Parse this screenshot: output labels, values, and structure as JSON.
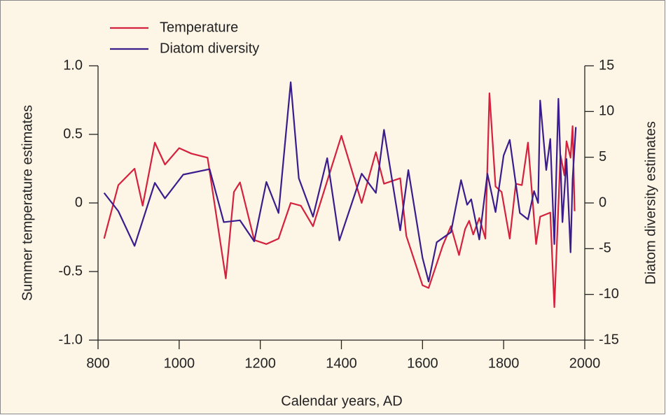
{
  "chart_data": {
    "type": "line",
    "xlabel": "Calendar years, AD",
    "ylabel": "Summer temperature estimates",
    "y2label": "Diatom diversity estimates",
    "xlim": [
      800,
      2000
    ],
    "xticks": [
      800,
      1000,
      1200,
      1400,
      1600,
      1800,
      2000
    ],
    "ylim": [
      -1,
      1
    ],
    "yticks": [
      {
        "value": -1,
        "label": "-1.0"
      },
      -0.5,
      0,
      0.5,
      {
        "value": 1,
        "label": "1.0"
      }
    ],
    "y2lim": [
      -15,
      15
    ],
    "y2ticks": [
      -15,
      -10,
      -5,
      0,
      5,
      10,
      15
    ],
    "legend": "top-left",
    "series": [
      {
        "name": "Temperature",
        "color": "#d4213d",
        "x": [
          815,
          850,
          890,
          910,
          940,
          965,
          1000,
          1030,
          1070,
          1115,
          1135,
          1150,
          1185,
          1215,
          1245,
          1275,
          1300,
          1330,
          1400,
          1450,
          1485,
          1505,
          1545,
          1560,
          1600,
          1615,
          1650,
          1670,
          1690,
          1705,
          1715,
          1725,
          1740,
          1755,
          1765,
          1780,
          1795,
          1815,
          1830,
          1845,
          1860,
          1880,
          1890,
          1915,
          1925,
          1940,
          1950,
          1955,
          1965,
          1970,
          1975
        ],
        "values": [
          -0.26,
          0.13,
          0.25,
          -0.02,
          0.44,
          0.28,
          0.4,
          0.36,
          0.33,
          -0.55,
          0.08,
          0.15,
          -0.27,
          -0.3,
          -0.26,
          0,
          -0.02,
          -0.17,
          0.49,
          0,
          0.37,
          0.14,
          0.18,
          -0.24,
          -0.6,
          -0.62,
          -0.31,
          -0.17,
          -0.38,
          -0.19,
          -0.13,
          -0.23,
          -0.11,
          -0.26,
          0.8,
          0.12,
          0.08,
          -0.26,
          0.14,
          0.13,
          0.44,
          -0.3,
          -0.1,
          -0.07,
          -0.76,
          0.35,
          0.2,
          0.45,
          0.33,
          0.56,
          -0.06
        ]
      },
      {
        "name": "Diatom diversity",
        "color": "#3b1c8c",
        "axis": "y2",
        "x": [
          815,
          850,
          890,
          940,
          965,
          1010,
          1075,
          1110,
          1150,
          1185,
          1215,
          1245,
          1275,
          1295,
          1330,
          1365,
          1395,
          1450,
          1485,
          1505,
          1545,
          1565,
          1600,
          1615,
          1635,
          1670,
          1695,
          1710,
          1720,
          1740,
          1760,
          1780,
          1800,
          1815,
          1840,
          1860,
          1875,
          1885,
          1890,
          1905,
          1915,
          1925,
          1935,
          1945,
          1955,
          1965,
          1970,
          1978
        ],
        "values": [
          1.1,
          -0.9,
          -4.7,
          2.2,
          0.5,
          3.1,
          3.7,
          -2.1,
          -1.9,
          -4.2,
          2.3,
          -1.1,
          13.2,
          2.7,
          -1.5,
          4.9,
          -4.1,
          3.2,
          1.1,
          8,
          -3,
          3.6,
          -6,
          -8.6,
          -4.3,
          -3.2,
          2.5,
          -0.2,
          0.4,
          -4,
          3.2,
          -1,
          5.2,
          6.9,
          -1.1,
          -1.8,
          1.3,
          0,
          11.2,
          3.6,
          7,
          -4.5,
          11.4,
          -2.1,
          4.8,
          -5.4,
          2.6,
          8.3
        ]
      }
    ]
  }
}
